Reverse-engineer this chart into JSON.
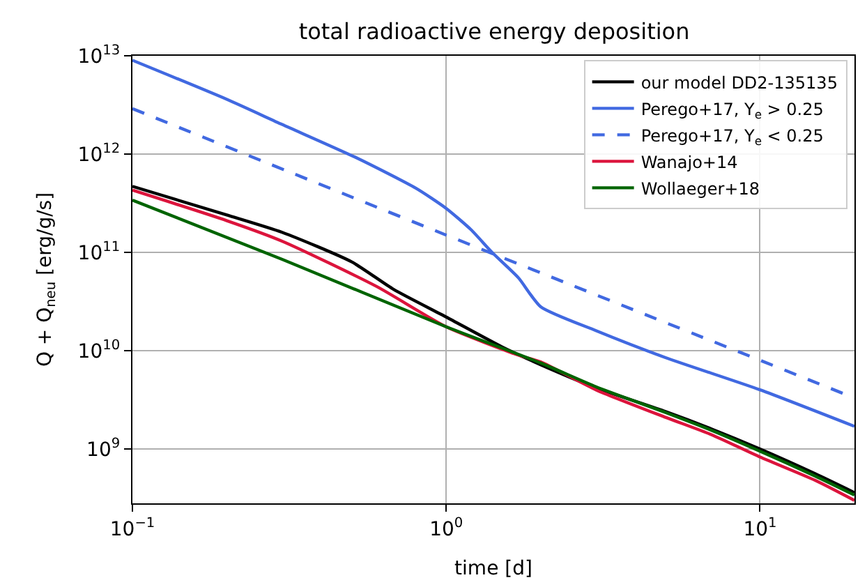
{
  "chart_data": {
    "type": "line",
    "title": "total radioactive energy deposition",
    "xlabel": "time [d]",
    "ylabel": "Q + Q$_{neu}$ [erg/g/s]",
    "log": "xy",
    "grid": true,
    "legend": "top right",
    "line_style": "solid",
    "xlim": [
      0.1,
      20
    ],
    "ylim": [
      280000000.0,
      10000000000000.0
    ],
    "xticks": [
      {
        "value": 0.1,
        "label": "10$^{−1}$"
      },
      {
        "value": 1,
        "label": "10$^{0}$"
      },
      {
        "value": 10,
        "label": "10$^{1}$"
      }
    ],
    "yticks": [
      {
        "value": 1000000000.0,
        "label": "10$^{9}$"
      },
      {
        "value": 10000000000.0,
        "label": "10$^{10}$"
      },
      {
        "value": 100000000000.0,
        "label": "10$^{11}$"
      },
      {
        "value": 1000000000000.0,
        "label": "10$^{12}$"
      },
      {
        "value": 10000000000000.0,
        "label": "10$^{13}$"
      }
    ],
    "series": [
      {
        "name": "our model DD2-135135",
        "color": "#000000",
        "x": [
          0.1,
          0.2,
          0.3,
          0.5,
          0.68,
          1,
          1.5,
          2,
          3,
          5,
          7,
          10,
          15,
          20
        ],
        "values": [
          470000000000.0,
          240000000000.0,
          160000000000.0,
          80000000000.0,
          42000000000.0,
          22000000000.0,
          11000000000.0,
          7200000000.0,
          4200000000.0,
          2400000000.0,
          1600000000.0,
          1000000000.0,
          560000000.0,
          360000000.0
        ]
      },
      {
        "name": "Perego+17, Y$_{e}$ > 0.25",
        "color": "#4169e1",
        "x": [
          0.1,
          0.2,
          0.3,
          0.52,
          0.8,
          1,
          1.2,
          1.4,
          1.7,
          2,
          3,
          5,
          10,
          20
        ],
        "values": [
          9000000000000.0,
          3600000000000.0,
          2000000000000.0,
          910000000000.0,
          450000000000.0,
          280000000000.0,
          170000000000.0,
          100000000000.0,
          55000000000.0,
          28000000000.0,
          16000000000.0,
          8500000000.0,
          4000000000.0,
          1700000000.0
        ]
      },
      {
        "name": "Perego+17, Y$_{e}$ < 0.25",
        "color": "#4169e1",
        "line_style": "dashed",
        "x": [
          0.1,
          1,
          10,
          20
        ],
        "values": [
          2900000000000.0,
          150000000000.0,
          8000000000.0,
          3300000000.0
        ]
      },
      {
        "name": "Wanajo+14",
        "color": "#dc143c",
        "x": [
          0.1,
          0.2,
          0.3,
          0.6,
          1,
          1.7,
          2,
          3,
          5,
          7,
          10,
          15,
          20
        ],
        "values": [
          430000000000.0,
          210000000000.0,
          130000000000.0,
          45000000000.0,
          17500000000.0,
          9000000000.0,
          7700000000.0,
          4000000000.0,
          2100000000.0,
          1400000000.0,
          830000000.0,
          480000000.0,
          300000000.0
        ]
      },
      {
        "name": "Wollaeger+18",
        "color": "#006400",
        "x": [
          0.1,
          0.3,
          1,
          2,
          3,
          5,
          7,
          10,
          15,
          20
        ],
        "values": [
          340000000000.0,
          85000000000.0,
          17500000000.0,
          7500000000.0,
          4300000000.0,
          2350000000.0,
          1550000000.0,
          950000000.0,
          530000000.0,
          340000000.0
        ]
      }
    ]
  }
}
